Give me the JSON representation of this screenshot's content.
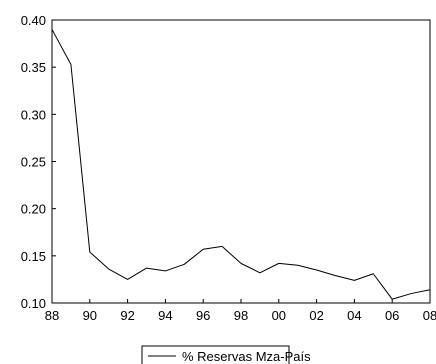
{
  "chart_data": {
    "type": "line",
    "title": "",
    "xlabel": "",
    "ylabel": "",
    "x": [
      1988,
      1989,
      1990,
      1991,
      1992,
      1993,
      1994,
      1995,
      1996,
      1997,
      1998,
      1999,
      2000,
      2001,
      2002,
      2003,
      2004,
      2005,
      2006,
      2007,
      2008
    ],
    "series": [
      {
        "name": "% Reservas Mza-País",
        "values": [
          0.39,
          0.353,
          0.154,
          0.136,
          0.125,
          0.137,
          0.134,
          0.141,
          0.157,
          0.16,
          0.142,
          0.132,
          0.142,
          0.14,
          0.135,
          0.129,
          0.124,
          0.131,
          0.104,
          0.11,
          0.114
        ]
      }
    ],
    "xlim": [
      1988,
      2008
    ],
    "ylim": [
      0.1,
      0.4
    ],
    "x_ticks": [
      1988,
      1990,
      1992,
      1994,
      1996,
      1998,
      2000,
      2002,
      2004,
      2006,
      2008
    ],
    "x_tick_labels": [
      "88",
      "90",
      "92",
      "94",
      "96",
      "98",
      "00",
      "02",
      "04",
      "06",
      "08"
    ],
    "y_ticks": [
      0.1,
      0.15,
      0.2,
      0.25,
      0.3,
      0.35,
      0.4
    ],
    "y_tick_labels": [
      "0.10",
      "0.15",
      "0.20",
      "0.25",
      "0.30",
      "0.35",
      "0.40"
    ],
    "grid": false,
    "legend_position": "bottom-center"
  }
}
